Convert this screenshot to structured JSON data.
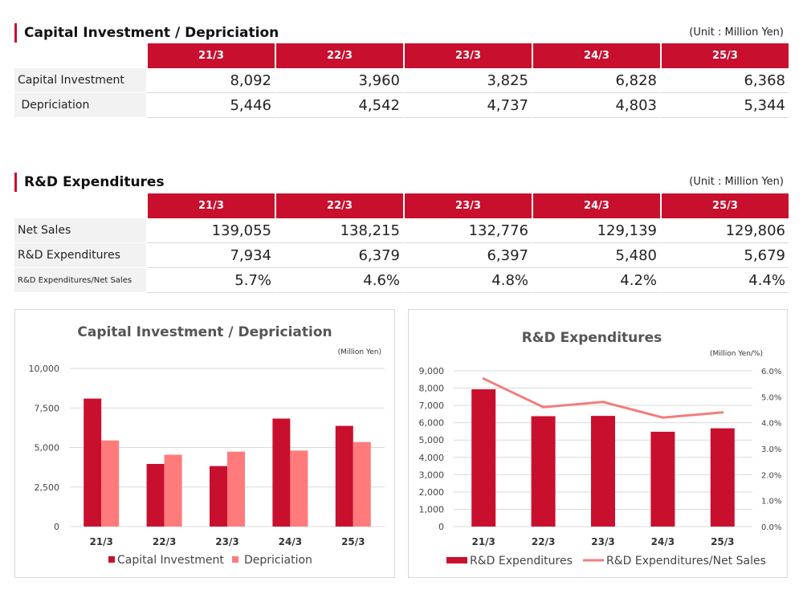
{
  "capex_section": {
    "title": "Capital Investment / Depriciation",
    "unit": "(Unit : Million Yen)",
    "columns": [
      "21/3",
      "22/3",
      "23/3",
      "24/3",
      "25/3"
    ],
    "rows": [
      {
        "label": "Capital Investment",
        "values": [
          "8,092",
          "3,960",
          "3,825",
          "6,828",
          "6,368"
        ]
      },
      {
        "label": " Depriciation",
        "values": [
          "5,446",
          "4,542",
          "4,737",
          "4,803",
          "5,344"
        ]
      }
    ]
  },
  "rd_section": {
    "title": "R&D Expenditures",
    "unit": "(Unit : Million Yen)",
    "columns": [
      "21/3",
      "22/3",
      "23/3",
      "24/3",
      "25/3"
    ],
    "rows": [
      {
        "label": "Net Sales",
        "values": [
          "139,055",
          "138,215",
          "132,776",
          "129,139",
          "129,806"
        ]
      },
      {
        "label": "R&D Expenditures",
        "values": [
          "7,934",
          "6,379",
          "6,397",
          "5,480",
          "5,679"
        ]
      },
      {
        "label": "R&D Expenditures/Net Sales",
        "values": [
          "5.7%",
          "4.6%",
          "4.8%",
          "4.2%",
          "4.4%"
        ]
      }
    ]
  },
  "colors": {
    "accent": "#c8102e",
    "capital_bar": "#c8102e",
    "depreciation_bar": "#ff7b7b",
    "rd_bar": "#c8102e",
    "ratio_line": "#f47c7c"
  },
  "chart_data": [
    {
      "type": "bar",
      "title": "Capital Investment / Depriciation",
      "unit_label": "(Million Yen)",
      "categories": [
        "21/3",
        "22/3",
        "23/3",
        "24/3",
        "25/3"
      ],
      "series": [
        {
          "name": "Capital Investment",
          "values": [
            8092,
            3960,
            3825,
            6828,
            6368
          ]
        },
        {
          "name": "Depriciation",
          "values": [
            5446,
            4542,
            4737,
            4803,
            5344
          ]
        }
      ],
      "ylim": [
        0,
        10000
      ],
      "yticks": [
        0,
        2500,
        5000,
        7500,
        10000
      ],
      "ytick_labels": [
        "0",
        "2,500",
        "5,000",
        "7,500",
        "10,000"
      ],
      "legend": "bottom"
    },
    {
      "type": "bar",
      "title": "R&D Expenditures",
      "unit_label": "(Million Yen/%)",
      "categories": [
        "21/3",
        "22/3",
        "23/3",
        "24/3",
        "25/3"
      ],
      "series": [
        {
          "name": "R&D Expenditures",
          "type": "bar",
          "axis": "left",
          "values": [
            7934,
            6379,
            6397,
            5480,
            5679
          ]
        },
        {
          "name": "R&D Expenditures/Net Sales",
          "type": "line",
          "axis": "right",
          "values": [
            5.7,
            4.6,
            4.8,
            4.2,
            4.4
          ]
        }
      ],
      "ylim": [
        0,
        9000
      ],
      "yticks": [
        0,
        1000,
        2000,
        3000,
        4000,
        5000,
        6000,
        7000,
        8000,
        9000
      ],
      "ytick_labels": [
        "0",
        "1,000",
        "2,000",
        "3,000",
        "4,000",
        "5,000",
        "6,000",
        "7,000",
        "8,000",
        "9,000"
      ],
      "y2lim": [
        0,
        6
      ],
      "y2ticks": [
        0,
        1,
        2,
        3,
        4,
        5,
        6
      ],
      "y2tick_labels": [
        "0.0%",
        "1.0%",
        "2.0%",
        "3.0%",
        "4.0%",
        "5.0%",
        "6.0%"
      ],
      "legend": "bottom"
    }
  ]
}
